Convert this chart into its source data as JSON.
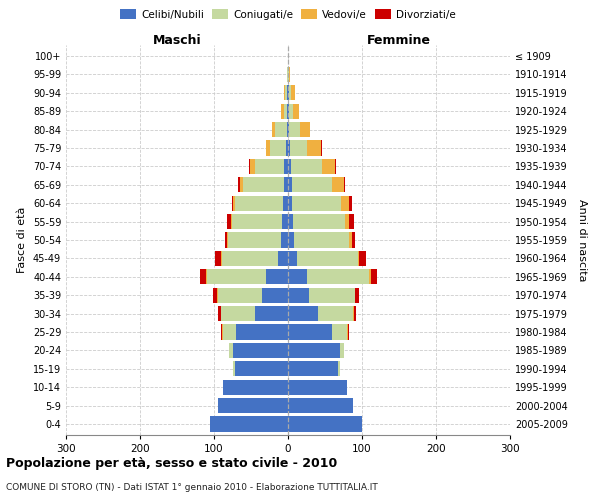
{
  "age_groups": [
    "0-4",
    "5-9",
    "10-14",
    "15-19",
    "20-24",
    "25-29",
    "30-34",
    "35-39",
    "40-44",
    "45-49",
    "50-54",
    "55-59",
    "60-64",
    "65-69",
    "70-74",
    "75-79",
    "80-84",
    "85-89",
    "90-94",
    "95-99",
    "100+"
  ],
  "birth_years": [
    "2005-2009",
    "2000-2004",
    "1995-1999",
    "1990-1994",
    "1985-1989",
    "1980-1984",
    "1975-1979",
    "1970-1974",
    "1965-1969",
    "1960-1964",
    "1955-1959",
    "1950-1954",
    "1945-1949",
    "1940-1944",
    "1935-1939",
    "1930-1934",
    "1925-1929",
    "1920-1924",
    "1915-1919",
    "1910-1914",
    "≤ 1909"
  ],
  "male_celibe": [
    105,
    95,
    88,
    72,
    75,
    70,
    45,
    35,
    30,
    14,
    9,
    8,
    7,
    6,
    5,
    3,
    2,
    1,
    1,
    0,
    0
  ],
  "male_coniugato": [
    0,
    0,
    0,
    2,
    5,
    18,
    45,
    60,
    80,
    75,
    72,
    68,
    65,
    55,
    40,
    22,
    15,
    5,
    3,
    1,
    0
  ],
  "male_vedovo": [
    0,
    0,
    0,
    0,
    0,
    1,
    1,
    1,
    1,
    1,
    1,
    1,
    2,
    4,
    7,
    5,
    4,
    3,
    2,
    1,
    0
  ],
  "male_divorziato": [
    0,
    0,
    0,
    0,
    0,
    1,
    3,
    5,
    8,
    8,
    3,
    5,
    2,
    2,
    1,
    0,
    0,
    0,
    0,
    0,
    0
  ],
  "female_celibe": [
    100,
    88,
    80,
    68,
    70,
    60,
    40,
    28,
    25,
    12,
    8,
    7,
    6,
    5,
    4,
    3,
    2,
    1,
    1,
    0,
    0
  ],
  "female_coniugata": [
    0,
    0,
    0,
    2,
    6,
    20,
    48,
    62,
    85,
    82,
    75,
    70,
    65,
    55,
    42,
    22,
    14,
    6,
    3,
    1,
    0
  ],
  "female_vedova": [
    0,
    0,
    0,
    0,
    0,
    1,
    1,
    1,
    2,
    2,
    3,
    5,
    12,
    15,
    18,
    20,
    14,
    8,
    5,
    2,
    0
  ],
  "female_divorziata": [
    0,
    0,
    0,
    0,
    0,
    1,
    3,
    5,
    8,
    10,
    5,
    7,
    3,
    2,
    1,
    1,
    0,
    0,
    0,
    0,
    0
  ],
  "color_celibe": "#4472c4",
  "color_coniugato": "#c5d9a0",
  "color_vedovo": "#f0b040",
  "color_divorziato": "#cc0000",
  "xlim": 300,
  "title": "Popolazione per età, sesso e stato civile - 2010",
  "subtitle": "COMUNE DI STORO (TN) - Dati ISTAT 1° gennaio 2010 - Elaborazione TUTTITALIA.IT",
  "ylabel_left": "Fasce di età",
  "ylabel_right": "Anni di nascita",
  "xlabel_maschi": "Maschi",
  "xlabel_femmine": "Femmine"
}
